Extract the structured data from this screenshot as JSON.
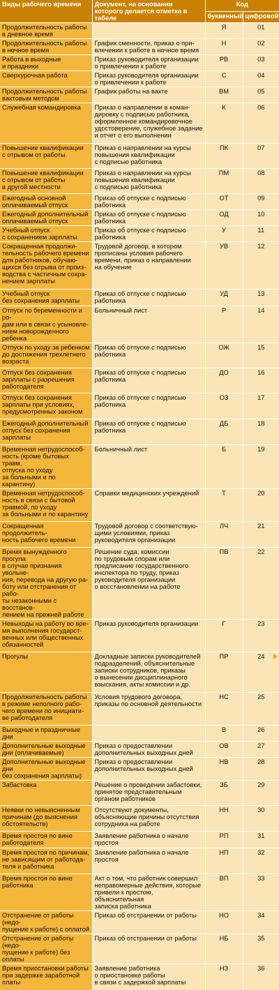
{
  "header": {
    "col_kind": "Виды рабочего времени",
    "col_doc": "Документ, на основании которого делается отметка в табеле",
    "col_code": "Код",
    "col_letter": "буквенный",
    "col_digit": "цифровой"
  },
  "rows": [
    {
      "kind": "Продолжительность работы\nв дневное время",
      "doc": "",
      "letter": "Я",
      "digit": "01",
      "h": 22
    },
    {
      "kind": "Продолжительность работы\nв ночное время",
      "doc": "График сменности, приказ о при-\nвлечении к работе в ночное время",
      "letter": "Н",
      "digit": "02",
      "h": 23
    },
    {
      "kind": "Работа в выходные\nи праздники",
      "doc": "Приказ руководителя организации\nо привлечении к работе",
      "letter": "РВ",
      "digit": "03",
      "h": 23
    },
    {
      "kind": "Сверхурочная работа",
      "doc": "Приказ руководителя организации\nо привлечении к работе",
      "letter": "С",
      "digit": "04",
      "h": 23
    },
    {
      "kind": "Продолжительность работы\nвахтовым методом",
      "doc": "График работы на вахте",
      "letter": "ВМ",
      "digit": "05",
      "h": 23
    },
    {
      "kind": "Служебная командировка",
      "doc": "Приказ о направлении в коман-\nдировку с подписью работника,\nоформленное командировочное\nудостоверение, служебное задание\nи отчет о его выполнении",
      "letter": "К",
      "digit": "06",
      "h": 58
    },
    {
      "kind": "Повышение квалификации\nс отрывом от работы",
      "doc": "Приказ о направлении на курсы\nповышения квалификации\nс подписью работника",
      "letter": "ПК",
      "digit": "07",
      "h": 36
    },
    {
      "kind": "Повышение квалификации\nс отрывом от работы\nв другой местности",
      "doc": "Приказ о направлении на курсы\nповышения квалификации\nс подписью работника",
      "letter": "ПМ",
      "digit": "08",
      "h": 36
    },
    {
      "kind": "Ежегодный основной\nоплачиваемый отпуск",
      "doc": "Приказ об отпуске с подписью\nработника",
      "letter": "ОТ",
      "digit": "09",
      "h": 22
    },
    {
      "kind": "Ежегодный дополнительный\nоплачиваемый отпуск",
      "doc": "Приказ об отпуске с подписью\nработника",
      "letter": "ОД",
      "digit": "10",
      "h": 23
    },
    {
      "kind": "Учебный отпуск\nс сохранением зарплаты",
      "doc": "Приказ об отпуске с подписью\nработника",
      "letter": "У",
      "digit": "11",
      "h": 23
    },
    {
      "kind": "Сокращенная продолжи-\nтельность рабочего времени\nдля работников, обучаю-\nщихся без отрыва от произ-\nводства с частичным сохра-\nнением зарплаты",
      "doc": "Трудовой договор, в котором\nпрописаны условия рабочего\nвремени, приказ о направлении\nна обучение",
      "letter": "УВ",
      "digit": "12",
      "h": 68
    },
    {
      "kind": "Учебный отпуск\nбез сохранения зарплаты",
      "doc": "Приказ об отпуске с подписью\nработника",
      "letter": "УД",
      "digit": "13",
      "h": 24
    },
    {
      "kind": "Отпуск по беременности и ро-\nдам или в связи с усыновле-\nнием новорожденного ребенка",
      "doc": "Больничный лист",
      "letter": "Р",
      "digit": "14",
      "h": 34
    },
    {
      "kind": "Отпуск по уходу за ребенком\nдо достижения трехлетнего\nвозраста",
      "doc": "Приказ об отпуске с подписью\nработника",
      "letter": "ОЖ",
      "digit": "15",
      "h": 36
    },
    {
      "kind": "Отпуск без сохранения\nзарплаты с разрешения\nработодателя",
      "doc": "Приказ об отпуске с подписью\nработника",
      "letter": "ДО",
      "digit": "16",
      "h": 36
    },
    {
      "kind": "Отпуск без сохранения\nзарплаты при условиях,\nпредусмотренных законом",
      "doc": "Приказ об отпуске с подписью\nработника",
      "letter": "ОЗ",
      "digit": "17",
      "h": 37
    },
    {
      "kind": "Ежегодный дополнительный\nотпуск без сохранения\nзарплаты",
      "doc": "Приказ об отпуске с подписью\nработника",
      "letter": "ДБ",
      "digit": "18",
      "h": 37
    },
    {
      "kind": "Временная нетрудоспособ-\nность (кроме бытовых травм,\nотпуска по уходу\nза больными и по карантину)",
      "doc": "Больничный лист",
      "letter": "Б",
      "digit": "19",
      "h": 47
    },
    {
      "kind": "Временная нетрудоспособ-\nность в связи с бытовой\nтравмой, по уходу\nза больными и по карантину",
      "doc": "Справки медицинских учреждений",
      "letter": "Т",
      "digit": "20",
      "h": 47
    },
    {
      "kind": "Сокращенная продолжитель-\nность рабочего времени",
      "doc": "Трудовой договор с соответствую-\nщими условиями, приказ\nруководителя организации",
      "letter": "ЛЧ",
      "digit": "21",
      "h": 37
    },
    {
      "kind": "Время вынужденного прогула\nв случае признания увольне-\nния, перевода на другую ра-\nботу или отстранения от рабо-\nты незаконными с восстанов-\nлением на прежней работе",
      "doc": "Решение суда, комиссии\nпо трудовым спорам или\nпредписание государственного\nинспектора по труду, приказ\nруководителя организации\nо восстановлении на работе",
      "letter": "ПВ",
      "digit": "22",
      "h": 70
    },
    {
      "kind": "Невыходы на работу во вре-\nмя выполнения государст-\nвенных или общественных\nобязанностей",
      "doc": "Приказ руководителя организации",
      "letter": "Г",
      "digit": "23",
      "h": 47
    },
    {
      "kind": "Прогулы",
      "doc": "Докладные записки руководителей\nподразделений, объяснительные\nзаписки сотрудников, приказы\nо вынесении дисциплинарного\nвзыскания, акты комиссии и др.",
      "letter": "ПР",
      "digit": "24",
      "h": 58
    },
    {
      "kind": "Продолжительность работы\nв режиме неполного рабо-\nчего времени по инициати-\nве работодателя",
      "doc": "Условия трудового договора,\nприказы по основной деятельности",
      "letter": "НС",
      "digit": "25",
      "h": 47
    },
    {
      "kind": "Выходные и праздничные дни",
      "doc": "",
      "letter": "В",
      "digit": "26",
      "h": 13
    },
    {
      "kind": "Дополнительные выходные\nдни (оплачиваемые)",
      "doc": "Приказ о предоставлении\nдополнительных выходных дней",
      "letter": "ОВ",
      "digit": "27",
      "h": 23
    },
    {
      "kind": "Дополнительные выходные дни\nбез сохранения зарплаты)",
      "doc": "Приказ о предоставлении\nдополнительных выходных дней",
      "letter": "НВ",
      "digit": "28",
      "h": 23
    },
    {
      "kind": "Забастовка",
      "doc": "Решение о проведении забастовки,\nпринятое представительным\nорганом работников",
      "letter": "ЗБ",
      "digit": "29",
      "h": 36
    },
    {
      "kind": "Неявки по невыясненным\nпричинам (до выяснения\nобстоятельств)",
      "doc": "Отсутствуют документы,\nобъясняющие причины отсутствия\nсотрудника на работе",
      "letter": "НН",
      "digit": "30",
      "h": 37
    },
    {
      "kind": "Время простоя по вине\nработодателя",
      "doc": "Заявление работника о начале\nпростоя",
      "letter": "РП",
      "digit": "31",
      "h": 24
    },
    {
      "kind": "Время простоя по причинам,\nне зависящим от работода-\nтеля и работника",
      "doc": "Заявление работника о начале\nпростоя",
      "letter": "НП",
      "digit": "32",
      "h": 37
    },
    {
      "kind": "Время простоя по вине\nработника",
      "doc": "Акт о том, что работник совершил\nнеправомерные действия, которые\nпривели к простою, объяснительная\nзаписка работника",
      "letter": "ВП",
      "digit": "33",
      "h": 48
    },
    {
      "kind": "Отстранение от работы (недо-\nпущение к работе) с оплатой",
      "doc": "Приказ об отстранении от работы",
      "letter": "НО",
      "digit": "34",
      "h": 23
    },
    {
      "kind": "Отстранение от работы (недо-\nпущение к работе) без оплаты",
      "doc": "Приказ об отстранении от работы",
      "letter": "НБ",
      "digit": "35",
      "h": 23
    },
    {
      "kind": "Время приостановки работы\nпри задержке заработной\nплаты",
      "doc": "Заявление работника\nо приостановке работы\nв связи с задержкой зарплаты",
      "letter": "НЗ",
      "digit": "36",
      "h": 37
    }
  ]
}
